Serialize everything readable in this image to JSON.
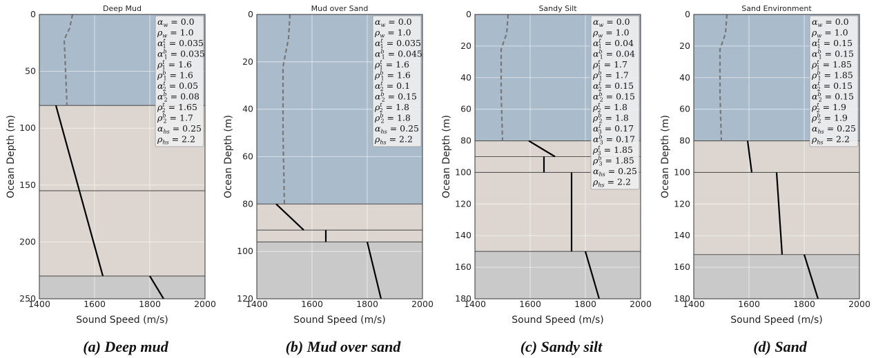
{
  "figure": {
    "xlabel": "Sound Speed (m/s)",
    "ylabel": "Ocean Depth (m)"
  },
  "chart_data": [
    {
      "type": "line",
      "title": "Deep Mud",
      "caption": "(a) Deep mud",
      "xlabel": "Sound Speed (m/s)",
      "ylabel": "Ocean Depth (m)",
      "xlim": [
        1400,
        2000
      ],
      "ylim": [
        250,
        0
      ],
      "xticks": [
        1400,
        1600,
        1800,
        2000
      ],
      "yticks": [
        0,
        50,
        100,
        150,
        200,
        250
      ],
      "layers": [
        {
          "medium": "water",
          "top": 0,
          "bottom": 80
        },
        {
          "medium": "sediment",
          "top": 80,
          "bottom": 155
        },
        {
          "medium": "sediment",
          "top": 155,
          "bottom": 230
        },
        {
          "medium": "halfspace",
          "top": 230,
          "bottom": 250
        }
      ],
      "water_profile": {
        "x": [
          1520,
          1510,
          1490,
          1495,
          1500
        ],
        "y": [
          0,
          12,
          22,
          50,
          80
        ]
      },
      "segments": [
        {
          "x": [
            1460,
            1630
          ],
          "y": [
            80,
            230
          ]
        },
        {
          "x": [
            1800,
            1850
          ],
          "y": [
            230,
            250
          ]
        }
      ],
      "params": [
        [
          "α",
          "w",
          "",
          "0.0"
        ],
        [
          "ρ",
          "w",
          "",
          "1.0"
        ],
        [
          "α",
          "1",
          "t",
          "0.035"
        ],
        [
          "α",
          "1",
          "b",
          "0.035"
        ],
        [
          "ρ",
          "1",
          "t",
          "1.6"
        ],
        [
          "ρ",
          "1",
          "b",
          "1.6"
        ],
        [
          "α",
          "2",
          "t",
          "0.05"
        ],
        [
          "α",
          "2",
          "b",
          "0.08"
        ],
        [
          "ρ",
          "2",
          "t",
          "1.65"
        ],
        [
          "ρ",
          "2",
          "b",
          "1.7"
        ],
        [
          "α",
          "hs",
          "",
          "0.25"
        ],
        [
          "ρ",
          "hs",
          "",
          "2.2"
        ]
      ]
    },
    {
      "type": "line",
      "title": "Mud over Sand",
      "caption": "(b) Mud over sand",
      "xlabel": "Sound Speed (m/s)",
      "ylabel": "Ocean Depth (m)",
      "xlim": [
        1400,
        2000
      ],
      "ylim": [
        120,
        0
      ],
      "xticks": [
        1400,
        1600,
        1800,
        2000
      ],
      "yticks": [
        0,
        20,
        40,
        60,
        80,
        100,
        120
      ],
      "layers": [
        {
          "medium": "water",
          "top": 0,
          "bottom": 80
        },
        {
          "medium": "sediment",
          "top": 80,
          "bottom": 91
        },
        {
          "medium": "sediment",
          "top": 91,
          "bottom": 96
        },
        {
          "medium": "halfspace",
          "top": 96,
          "bottom": 120
        }
      ],
      "water_profile": {
        "x": [
          1520,
          1515,
          1495,
          1495,
          1500
        ],
        "y": [
          0,
          10,
          22,
          50,
          80
        ]
      },
      "segments": [
        {
          "x": [
            1470,
            1570
          ],
          "y": [
            80,
            91
          ]
        },
        {
          "x": [
            1650,
            1650
          ],
          "y": [
            91,
            96
          ]
        },
        {
          "x": [
            1800,
            1850
          ],
          "y": [
            96,
            120
          ]
        }
      ],
      "params": [
        [
          "α",
          "w",
          "",
          "0.0"
        ],
        [
          "ρ",
          "w",
          "",
          "1.0"
        ],
        [
          "α",
          "1",
          "t",
          "0.035"
        ],
        [
          "α",
          "1",
          "b",
          "0.045"
        ],
        [
          "ρ",
          "1",
          "t",
          "1.6"
        ],
        [
          "ρ",
          "1",
          "b",
          "1.6"
        ],
        [
          "α",
          "2",
          "t",
          "0.1"
        ],
        [
          "α",
          "2",
          "b",
          "0.15"
        ],
        [
          "ρ",
          "2",
          "t",
          "1.8"
        ],
        [
          "ρ",
          "2",
          "b",
          "1.8"
        ],
        [
          "α",
          "hs",
          "",
          "0.25"
        ],
        [
          "ρ",
          "hs",
          "",
          "2.2"
        ]
      ]
    },
    {
      "type": "line",
      "title": "Sandy Silt",
      "caption": "(c) Sandy silt",
      "xlabel": "Sound Speed (m/s)",
      "ylabel": "Ocean Depth (m)",
      "xlim": [
        1400,
        2000
      ],
      "ylim": [
        180,
        0
      ],
      "xticks": [
        1400,
        1600,
        1800,
        2000
      ],
      "yticks": [
        0,
        20,
        40,
        60,
        80,
        100,
        120,
        140,
        160,
        180
      ],
      "layers": [
        {
          "medium": "water",
          "top": 0,
          "bottom": 80
        },
        {
          "medium": "sediment",
          "top": 80,
          "bottom": 90
        },
        {
          "medium": "sediment",
          "top": 90,
          "bottom": 100
        },
        {
          "medium": "sediment",
          "top": 100,
          "bottom": 150
        },
        {
          "medium": "halfspace",
          "top": 150,
          "bottom": 180
        }
      ],
      "water_profile": {
        "x": [
          1520,
          1515,
          1495,
          1495,
          1500
        ],
        "y": [
          0,
          12,
          22,
          50,
          80
        ]
      },
      "segments": [
        {
          "x": [
            1595,
            1690
          ],
          "y": [
            80,
            90
          ]
        },
        {
          "x": [
            1650,
            1650
          ],
          "y": [
            90,
            100
          ]
        },
        {
          "x": [
            1750,
            1750
          ],
          "y": [
            100,
            150
          ]
        },
        {
          "x": [
            1800,
            1850
          ],
          "y": [
            150,
            180
          ]
        }
      ],
      "params": [
        [
          "α",
          "w",
          "",
          "0.0"
        ],
        [
          "ρ",
          "w",
          "",
          "1.0"
        ],
        [
          "α",
          "1",
          "t",
          "0.04"
        ],
        [
          "α",
          "1",
          "b",
          "0.04"
        ],
        [
          "ρ",
          "1",
          "t",
          "1.7"
        ],
        [
          "ρ",
          "1",
          "b",
          "1.7"
        ],
        [
          "α",
          "2",
          "t",
          "0.15"
        ],
        [
          "α",
          "2",
          "b",
          "0.15"
        ],
        [
          "ρ",
          "2",
          "t",
          "1.8"
        ],
        [
          "ρ",
          "2",
          "b",
          "1.8"
        ],
        [
          "α",
          "3",
          "t",
          "0.17"
        ],
        [
          "α",
          "3",
          "b",
          "0.17"
        ],
        [
          "ρ",
          "3",
          "t",
          "1.85"
        ],
        [
          "ρ",
          "3",
          "b",
          "1.85"
        ],
        [
          "α",
          "hs",
          "",
          "0.25"
        ],
        [
          "ρ",
          "hs",
          "",
          "2.2"
        ]
      ]
    },
    {
      "type": "line",
      "title": "Sand Environment",
      "caption": "(d) Sand",
      "xlabel": "Sound Speed (m/s)",
      "ylabel": "Ocean Depth (m)",
      "xlim": [
        1400,
        2000
      ],
      "ylim": [
        180,
        0
      ],
      "xticks": [
        1400,
        1600,
        1800,
        2000
      ],
      "yticks": [
        0,
        20,
        40,
        60,
        80,
        100,
        120,
        140,
        160,
        180
      ],
      "layers": [
        {
          "medium": "water",
          "top": 0,
          "bottom": 80
        },
        {
          "medium": "sediment",
          "top": 80,
          "bottom": 100
        },
        {
          "medium": "sediment",
          "top": 100,
          "bottom": 152
        },
        {
          "medium": "halfspace",
          "top": 152,
          "bottom": 180
        }
      ],
      "water_profile": {
        "x": [
          1520,
          1515,
          1495,
          1495,
          1500
        ],
        "y": [
          0,
          12,
          22,
          50,
          80
        ]
      },
      "segments": [
        {
          "x": [
            1595,
            1610
          ],
          "y": [
            80,
            100
          ]
        },
        {
          "x": [
            1700,
            1720
          ],
          "y": [
            100,
            152
          ]
        },
        {
          "x": [
            1800,
            1850
          ],
          "y": [
            152,
            180
          ]
        }
      ],
      "params": [
        [
          "α",
          "w",
          "",
          "0.0"
        ],
        [
          "ρ",
          "w",
          "",
          "1.0"
        ],
        [
          "α",
          "1",
          "t",
          "0.15"
        ],
        [
          "α",
          "1",
          "b",
          "0.15"
        ],
        [
          "ρ",
          "1",
          "t",
          "1.85"
        ],
        [
          "ρ",
          "1",
          "b",
          "1.85"
        ],
        [
          "α",
          "2",
          "t",
          "0.15"
        ],
        [
          "α",
          "2",
          "b",
          "0.15"
        ],
        [
          "ρ",
          "2",
          "t",
          "1.9"
        ],
        [
          "ρ",
          "2",
          "b",
          "1.9"
        ],
        [
          "α",
          "hs",
          "",
          "0.25"
        ],
        [
          "ρ",
          "hs",
          "",
          "2.2"
        ]
      ]
    }
  ],
  "colors": {
    "water": "#aabbcc",
    "sediment": "#ddd6d0",
    "halfspace": "#c9c9c9",
    "profile": "#777777",
    "segment": "#000000",
    "grid": "#ffffff",
    "layer_line": "#555555"
  }
}
